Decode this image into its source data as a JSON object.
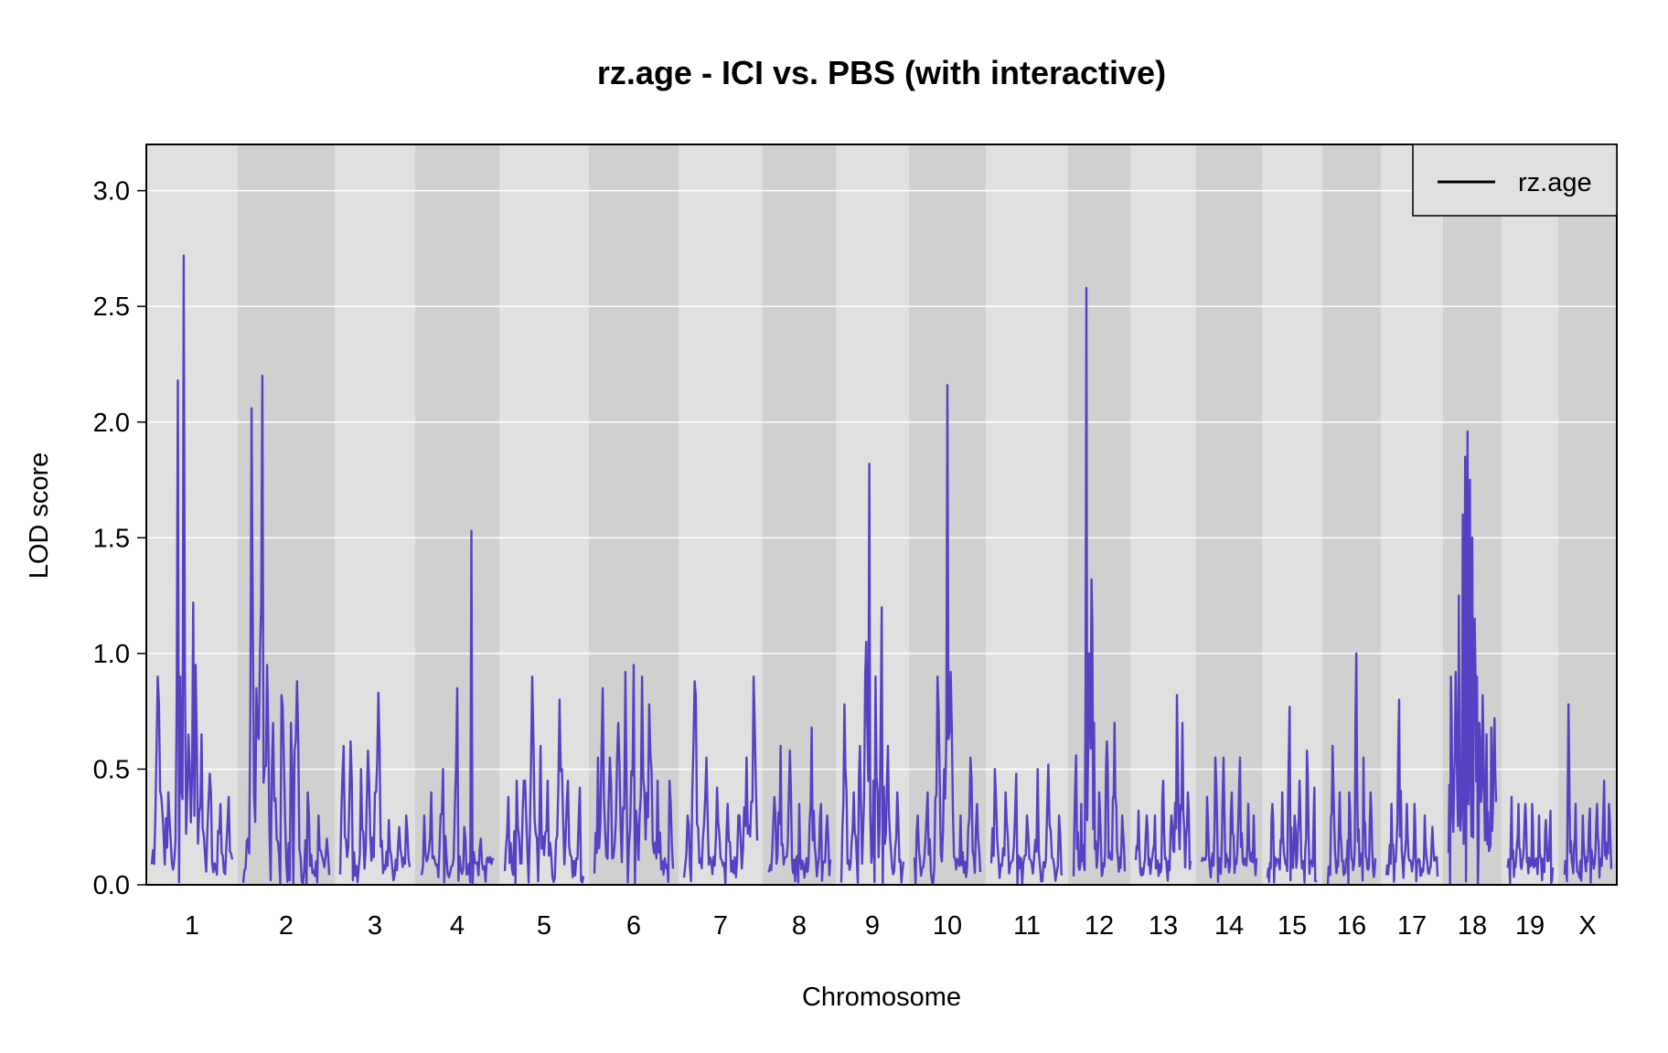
{
  "chart_data": {
    "type": "line",
    "title": "rz.age - ICI vs. PBS (with interactive)",
    "xlabel": "Chromosome",
    "ylabel": "LOD score",
    "ylim": [
      0,
      3.2
    ],
    "yticks": [
      "0.0",
      "0.5",
      "1.0",
      "1.5",
      "2.0",
      "2.5",
      "3.0"
    ],
    "grid": true,
    "legend": {
      "position": "top-right",
      "entries": [
        "rz.age"
      ]
    },
    "colors": {
      "line": "#5542c3",
      "band_light": "#e0e0e0",
      "band_dark": "#d0d0d0",
      "grid": "#ffffff",
      "legend_line": "#000000"
    },
    "series": [
      {
        "name": "rz.age",
        "chromosomes": [
          {
            "chr": "1",
            "peaks": [
              [
                0.05,
                0.3
              ],
              [
                0.08,
                0.9
              ],
              [
                0.12,
                0.38
              ],
              [
                0.2,
                0.4
              ],
              [
                0.32,
                2.18
              ],
              [
                0.36,
                0.9
              ],
              [
                0.4,
                2.72
              ],
              [
                0.45,
                0.65
              ],
              [
                0.52,
                1.22
              ],
              [
                0.55,
                0.95
              ],
              [
                0.62,
                0.65
              ],
              [
                0.72,
                0.48
              ],
              [
                0.85,
                0.35
              ],
              [
                0.95,
                0.38
              ]
            ]
          },
          {
            "chr": "2",
            "peaks": [
              [
                0.05,
                0.2
              ],
              [
                0.1,
                2.06
              ],
              [
                0.15,
                0.85
              ],
              [
                0.2,
                1.0
              ],
              [
                0.22,
                2.2
              ],
              [
                0.28,
                0.95
              ],
              [
                0.35,
                0.7
              ],
              [
                0.45,
                0.82
              ],
              [
                0.55,
                0.7
              ],
              [
                0.62,
                0.88
              ],
              [
                0.75,
                0.4
              ],
              [
                0.88,
                0.3
              ],
              [
                0.97,
                0.2
              ]
            ]
          },
          {
            "chr": "3",
            "peaks": [
              [
                0.05,
                0.6
              ],
              [
                0.15,
                0.62
              ],
              [
                0.3,
                0.5
              ],
              [
                0.4,
                0.58
              ],
              [
                0.5,
                0.4
              ],
              [
                0.55,
                0.83
              ],
              [
                0.7,
                0.28
              ],
              [
                0.85,
                0.25
              ],
              [
                0.95,
                0.3
              ]
            ]
          },
          {
            "chr": "4",
            "peaks": [
              [
                0.05,
                0.3
              ],
              [
                0.15,
                0.4
              ],
              [
                0.3,
                0.5
              ],
              [
                0.5,
                0.85
              ],
              [
                0.6,
                0.25
              ],
              [
                0.7,
                1.53
              ],
              [
                0.82,
                0.2
              ],
              [
                0.95,
                0.12
              ]
            ]
          },
          {
            "chr": "5",
            "peaks": [
              [
                0.05,
                0.38
              ],
              [
                0.15,
                0.45
              ],
              [
                0.25,
                0.45
              ],
              [
                0.35,
                0.9
              ],
              [
                0.45,
                0.6
              ],
              [
                0.55,
                0.45
              ],
              [
                0.7,
                0.8
              ],
              [
                0.8,
                0.45
              ],
              [
                0.95,
                0.42
              ]
            ]
          },
          {
            "chr": "6",
            "peaks": [
              [
                0.05,
                0.55
              ],
              [
                0.1,
                0.85
              ],
              [
                0.2,
                0.55
              ],
              [
                0.3,
                0.7
              ],
              [
                0.4,
                0.92
              ],
              [
                0.5,
                0.95
              ],
              [
                0.6,
                0.9
              ],
              [
                0.7,
                0.78
              ],
              [
                0.8,
                0.45
              ],
              [
                0.95,
                0.45
              ]
            ]
          },
          {
            "chr": "7",
            "peaks": [
              [
                0.05,
                0.3
              ],
              [
                0.15,
                0.88
              ],
              [
                0.3,
                0.55
              ],
              [
                0.45,
                0.42
              ],
              [
                0.6,
                0.35
              ],
              [
                0.75,
                0.3
              ],
              [
                0.85,
                0.55
              ],
              [
                0.95,
                0.9
              ]
            ]
          },
          {
            "chr": "8",
            "peaks": [
              [
                0.1,
                0.38
              ],
              [
                0.2,
                0.6
              ],
              [
                0.35,
                0.58
              ],
              [
                0.5,
                0.35
              ],
              [
                0.7,
                0.68
              ],
              [
                0.85,
                0.35
              ],
              [
                0.95,
                0.3
              ]
            ]
          },
          {
            "chr": "9",
            "peaks": [
              [
                0.05,
                0.78
              ],
              [
                0.2,
                0.4
              ],
              [
                0.3,
                0.6
              ],
              [
                0.4,
                1.05
              ],
              [
                0.45,
                1.82
              ],
              [
                0.55,
                0.9
              ],
              [
                0.65,
                1.2
              ],
              [
                0.75,
                0.6
              ],
              [
                0.9,
                0.4
              ]
            ]
          },
          {
            "chr": "10",
            "peaks": [
              [
                0.05,
                0.3
              ],
              [
                0.2,
                0.4
              ],
              [
                0.35,
                0.9
              ],
              [
                0.45,
                0.5
              ],
              [
                0.5,
                2.16
              ],
              [
                0.55,
                0.92
              ],
              [
                0.7,
                0.3
              ],
              [
                0.85,
                0.55
              ],
              [
                0.95,
                0.35
              ]
            ]
          },
          {
            "chr": "11",
            "peaks": [
              [
                0.05,
                0.5
              ],
              [
                0.2,
                0.4
              ],
              [
                0.35,
                0.48
              ],
              [
                0.5,
                0.3
              ],
              [
                0.65,
                0.5
              ],
              [
                0.8,
                0.52
              ],
              [
                0.95,
                0.3
              ]
            ]
          },
          {
            "chr": "12",
            "peaks": [
              [
                0.05,
                0.56
              ],
              [
                0.15,
                0.35
              ],
              [
                0.25,
                2.58
              ],
              [
                0.3,
                1.0
              ],
              [
                0.35,
                1.32
              ],
              [
                0.4,
                0.7
              ],
              [
                0.5,
                0.4
              ],
              [
                0.65,
                0.62
              ],
              [
                0.8,
                0.7
              ],
              [
                0.95,
                0.3
              ]
            ]
          },
          {
            "chr": "13",
            "peaks": [
              [
                0.05,
                0.32
              ],
              [
                0.2,
                0.3
              ],
              [
                0.35,
                0.3
              ],
              [
                0.5,
                0.45
              ],
              [
                0.65,
                0.3
              ],
              [
                0.75,
                0.82
              ],
              [
                0.85,
                0.7
              ],
              [
                0.95,
                0.4
              ]
            ]
          },
          {
            "chr": "14",
            "peaks": [
              [
                0.1,
                0.38
              ],
              [
                0.25,
                0.55
              ],
              [
                0.4,
                0.55
              ],
              [
                0.55,
                0.4
              ],
              [
                0.7,
                0.55
              ],
              [
                0.85,
                0.35
              ],
              [
                0.95,
                0.3
              ]
            ]
          },
          {
            "chr": "15",
            "peaks": [
              [
                0.1,
                0.35
              ],
              [
                0.3,
                0.4
              ],
              [
                0.45,
                0.77
              ],
              [
                0.55,
                0.3
              ],
              [
                0.65,
                0.45
              ],
              [
                0.8,
                0.58
              ],
              [
                0.95,
                0.42
              ]
            ]
          },
          {
            "chr": "16",
            "peaks": [
              [
                0.1,
                0.6
              ],
              [
                0.25,
                0.4
              ],
              [
                0.45,
                0.4
              ],
              [
                0.6,
                1.0
              ],
              [
                0.75,
                0.55
              ],
              [
                0.9,
                0.4
              ]
            ]
          },
          {
            "chr": "17",
            "peaks": [
              [
                0.1,
                0.35
              ],
              [
                0.25,
                0.8
              ],
              [
                0.4,
                0.35
              ],
              [
                0.55,
                0.35
              ],
              [
                0.75,
                0.3
              ],
              [
                0.9,
                0.25
              ]
            ]
          },
          {
            "chr": "18",
            "peaks": [
              [
                0.05,
                0.9
              ],
              [
                0.15,
                0.92
              ],
              [
                0.22,
                1.25
              ],
              [
                0.3,
                1.6
              ],
              [
                0.35,
                1.85
              ],
              [
                0.4,
                1.96
              ],
              [
                0.45,
                1.75
              ],
              [
                0.5,
                1.5
              ],
              [
                0.55,
                1.15
              ],
              [
                0.6,
                0.9
              ],
              [
                0.65,
                0.7
              ],
              [
                0.72,
                0.82
              ],
              [
                0.8,
                0.65
              ],
              [
                0.9,
                0.68
              ],
              [
                0.97,
                0.72
              ]
            ]
          },
          {
            "chr": "19",
            "peaks": [
              [
                0.1,
                0.38
              ],
              [
                0.25,
                0.35
              ],
              [
                0.4,
                0.35
              ],
              [
                0.55,
                0.35
              ],
              [
                0.7,
                0.3
              ],
              [
                0.85,
                0.28
              ],
              [
                0.95,
                0.32
              ]
            ]
          },
          {
            "chr": "X",
            "peaks": [
              [
                0.1,
                0.78
              ],
              [
                0.25,
                0.35
              ],
              [
                0.4,
                0.3
              ],
              [
                0.55,
                0.33
              ],
              [
                0.7,
                0.35
              ],
              [
                0.85,
                0.45
              ],
              [
                0.95,
                0.35
              ]
            ]
          }
        ]
      }
    ]
  }
}
